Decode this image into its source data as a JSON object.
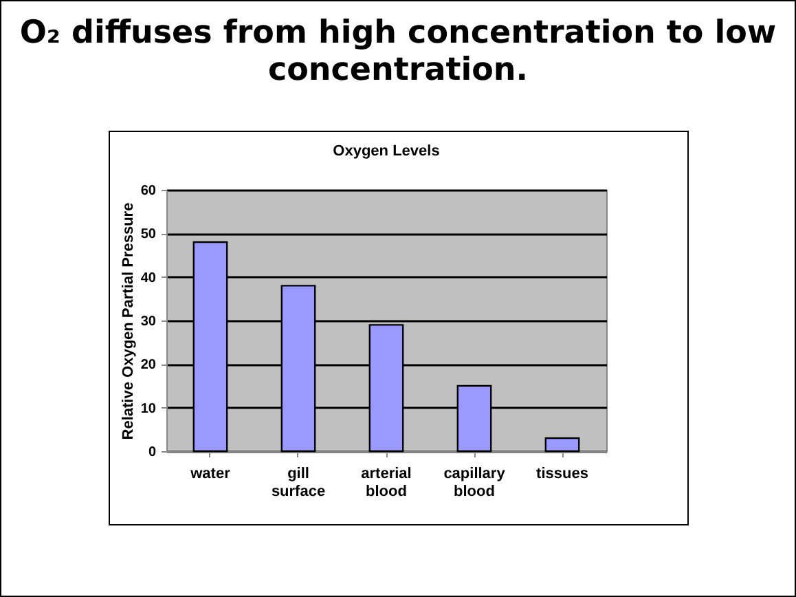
{
  "chart_data": {
    "type": "bar",
    "title": "Oxygen Levels",
    "subtitle": "O₂ diffuses from high concentration to low concentration.",
    "ylabel": "Relative Oxygen Partial Pressure",
    "categories": [
      "water",
      "gill surface",
      "arterial blood",
      "capillary blood",
      "tissues"
    ],
    "values": [
      48,
      38,
      29,
      15,
      3
    ],
    "color": "#9999ff",
    "ylim": [
      0,
      60
    ],
    "yticks": [
      0,
      10,
      20,
      30,
      40,
      50,
      60
    ],
    "grid": "y"
  }
}
